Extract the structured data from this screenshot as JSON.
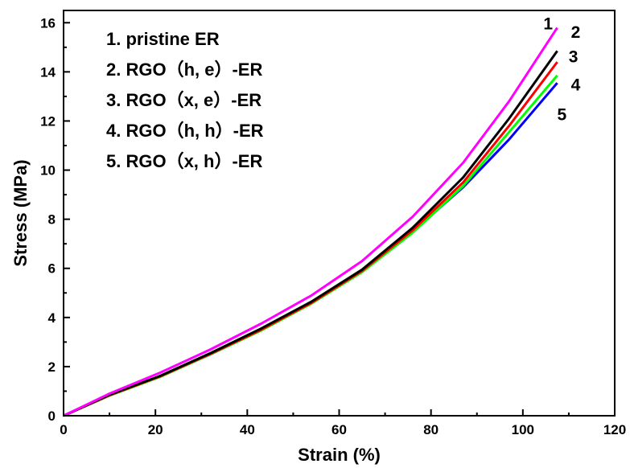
{
  "chart_data": {
    "type": "line",
    "title": "",
    "xlabel": "Strain (%)",
    "ylabel": "Stress (MPa)",
    "xlim": [
      0,
      120
    ],
    "ylim": [
      0,
      16.5
    ],
    "xticks": [
      0,
      20,
      40,
      60,
      80,
      100,
      120
    ],
    "yticks": [
      0,
      2,
      4,
      6,
      8,
      10,
      12,
      14,
      16
    ],
    "grid": false,
    "legend": {
      "placement": "top-left",
      "entries": [
        "1. pristine ER",
        "2. RGO（h, e）-ER",
        "3. RGO（x, e）-ER",
        "4. RGO（h, h）-ER",
        "5. RGO（x, h）-ER"
      ]
    },
    "series": [
      {
        "label": "1",
        "color": "#ff00ff",
        "x": [
          0,
          10,
          21,
          32,
          43,
          54,
          65,
          76,
          87,
          97,
          107.5
        ],
        "y": [
          0,
          0.9,
          1.75,
          2.7,
          3.75,
          4.9,
          6.3,
          8.1,
          10.3,
          12.8,
          15.8
        ]
      },
      {
        "label": "2",
        "color": "#000000",
        "x": [
          0,
          10,
          21,
          32,
          43,
          54,
          65,
          76,
          87,
          97,
          107.5
        ],
        "y": [
          0,
          0.85,
          1.62,
          2.55,
          3.55,
          4.65,
          5.95,
          7.65,
          9.7,
          12.1,
          14.85
        ]
      },
      {
        "label": "3",
        "color": "#ff0000",
        "x": [
          0,
          10,
          21,
          32,
          43,
          54,
          65,
          76,
          87,
          97,
          107.5
        ],
        "y": [
          0,
          0.83,
          1.6,
          2.52,
          3.5,
          4.6,
          5.9,
          7.55,
          9.5,
          11.8,
          14.4
        ]
      },
      {
        "label": "4",
        "color": "#00ff00",
        "x": [
          0,
          10,
          21,
          32,
          43,
          54,
          65,
          76,
          87,
          97,
          107.5
        ],
        "y": [
          0,
          0.82,
          1.58,
          2.5,
          3.47,
          4.57,
          5.85,
          7.45,
          9.35,
          11.55,
          13.85
        ]
      },
      {
        "label": "5",
        "color": "#0000ff",
        "x": [
          0,
          10,
          21,
          32,
          43,
          54,
          65,
          76,
          87,
          97,
          107.5
        ],
        "y": [
          0,
          0.84,
          1.6,
          2.5,
          3.5,
          4.62,
          5.9,
          7.5,
          9.3,
          11.25,
          13.55
        ]
      }
    ],
    "curve_labels": [
      {
        "text": "1",
        "x": 105.5,
        "y": 16.0
      },
      {
        "text": "2",
        "x": 111.5,
        "y": 15.65
      },
      {
        "text": "3",
        "x": 111.0,
        "y": 14.65
      },
      {
        "text": "4",
        "x": 111.5,
        "y": 13.5
      },
      {
        "text": "5",
        "x": 108.5,
        "y": 12.3
      }
    ]
  }
}
